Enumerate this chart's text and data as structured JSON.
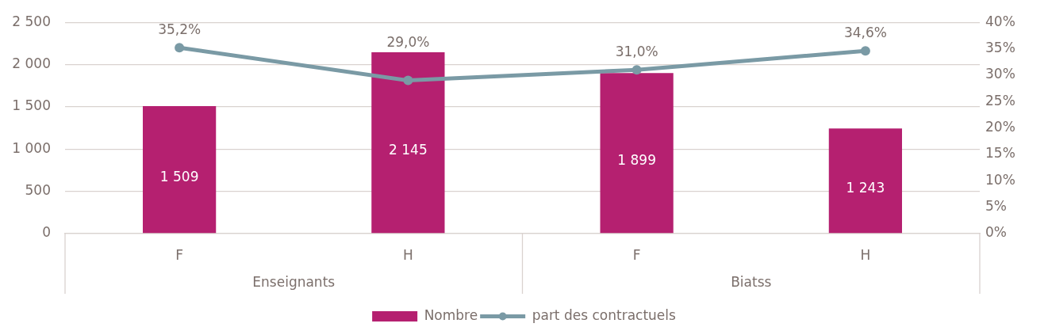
{
  "chart_data": {
    "type": "bar",
    "categories": [
      "F",
      "H",
      "F",
      "H"
    ],
    "series": [
      {
        "name": "Nombre",
        "color": "#b52070",
        "values": [
          1509,
          2145,
          1899,
          1243
        ],
        "value_labels": [
          "1 509",
          "2 145",
          "1 899",
          "1 243"
        ]
      },
      {
        "name": "part des contractuels",
        "type": "line",
        "axis": "y2",
        "color": "#7a9aa5",
        "values": [
          35.2,
          29.0,
          31.0,
          34.6
        ],
        "value_labels": [
          "35,2%",
          "29,0%",
          "31,0%",
          "34,6%"
        ]
      }
    ],
    "ylim": [
      0,
      2500
    ],
    "yticks": [
      0,
      500,
      {
        "value": 1000,
        "label": "1 000"
      },
      {
        "value": 1500,
        "label": "1 500"
      },
      {
        "value": 2000,
        "label": "2 000"
      },
      {
        "value": 2500,
        "label": "2 500"
      }
    ],
    "y2lim": [
      0,
      40
    ],
    "y2ticks": [
      {
        "value": 0,
        "label": "0%"
      },
      {
        "value": 5,
        "label": "5%"
      },
      {
        "value": 10,
        "label": "10%"
      },
      {
        "value": 15,
        "label": "15%"
      },
      {
        "value": 20,
        "label": "20%"
      },
      {
        "value": 25,
        "label": "25%"
      },
      {
        "value": 30,
        "label": "30%"
      },
      {
        "value": 35,
        "label": "35%"
      },
      {
        "value": 40,
        "label": "40%"
      }
    ],
    "grid": "y",
    "legend": "bottom",
    "marker": "circle",
    "line_style": "solid",
    "annotations": [
      "Enseignants",
      "Biatss"
    ]
  }
}
